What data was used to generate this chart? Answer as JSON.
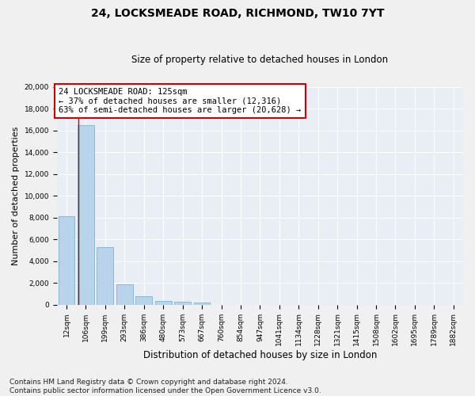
{
  "title": "24, LOCKSMEADE ROAD, RICHMOND, TW10 7YT",
  "subtitle": "Size of property relative to detached houses in London",
  "xlabel": "Distribution of detached houses by size in London",
  "ylabel": "Number of detached properties",
  "categories": [
    "12sqm",
    "106sqm",
    "199sqm",
    "293sqm",
    "386sqm",
    "480sqm",
    "573sqm",
    "667sqm",
    "760sqm",
    "854sqm",
    "947sqm",
    "1041sqm",
    "1134sqm",
    "1228sqm",
    "1321sqm",
    "1415sqm",
    "1508sqm",
    "1602sqm",
    "1695sqm",
    "1789sqm",
    "1882sqm"
  ],
  "values": [
    8100,
    16500,
    5300,
    1850,
    750,
    330,
    250,
    200,
    0,
    0,
    0,
    0,
    0,
    0,
    0,
    0,
    0,
    0,
    0,
    0,
    0
  ],
  "bar_color": "#b8d4ea",
  "bar_edge_color": "#6aaad4",
  "vline_color": "#cc0000",
  "annotation_text": "24 LOCKSMEADE ROAD: 125sqm\n← 37% of detached houses are smaller (12,316)\n63% of semi-detached houses are larger (20,628) →",
  "annotation_box_color": "#ffffff",
  "annotation_box_edge_color": "#cc0000",
  "footer_text": "Contains HM Land Registry data © Crown copyright and database right 2024.\nContains public sector information licensed under the Open Government Licence v3.0.",
  "ylim": [
    0,
    20000
  ],
  "yticks": [
    0,
    2000,
    4000,
    6000,
    8000,
    10000,
    12000,
    14000,
    16000,
    18000,
    20000
  ],
  "background_color": "#e8eef4",
  "grid_color": "#ffffff",
  "title_fontsize": 10,
  "subtitle_fontsize": 8.5,
  "ylabel_fontsize": 8,
  "xlabel_fontsize": 8.5,
  "tick_fontsize": 6.5,
  "annotation_fontsize": 7.5,
  "footer_fontsize": 6.5
}
